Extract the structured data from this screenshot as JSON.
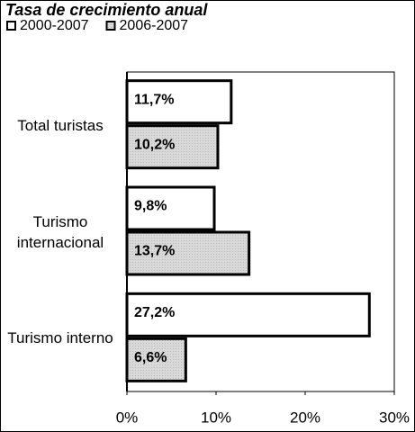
{
  "chart_data": {
    "type": "hbar",
    "title": "Tasa de crecimiento anual",
    "categories": [
      "Total turistas",
      "Turismo internacional",
      "Turismo interno"
    ],
    "series": [
      {
        "name": "2000-2007",
        "color": "#ffffff",
        "values": [
          11.7,
          9.8,
          27.2
        ],
        "value_labels": [
          "11,7%",
          "9,8%",
          "27,2%"
        ]
      },
      {
        "name": "2006-2007",
        "color": "#d9d9d9",
        "values": [
          10.2,
          13.7,
          6.6
        ],
        "value_labels": [
          "10,2%",
          "13,7%",
          "6,6%"
        ]
      }
    ],
    "xlim": [
      0,
      30
    ],
    "xticks": [
      {
        "value": 0,
        "label": "0%"
      },
      {
        "value": 10,
        "label": "10%"
      },
      {
        "value": 20,
        "label": "20%"
      },
      {
        "value": 30,
        "label": "30%"
      }
    ]
  }
}
